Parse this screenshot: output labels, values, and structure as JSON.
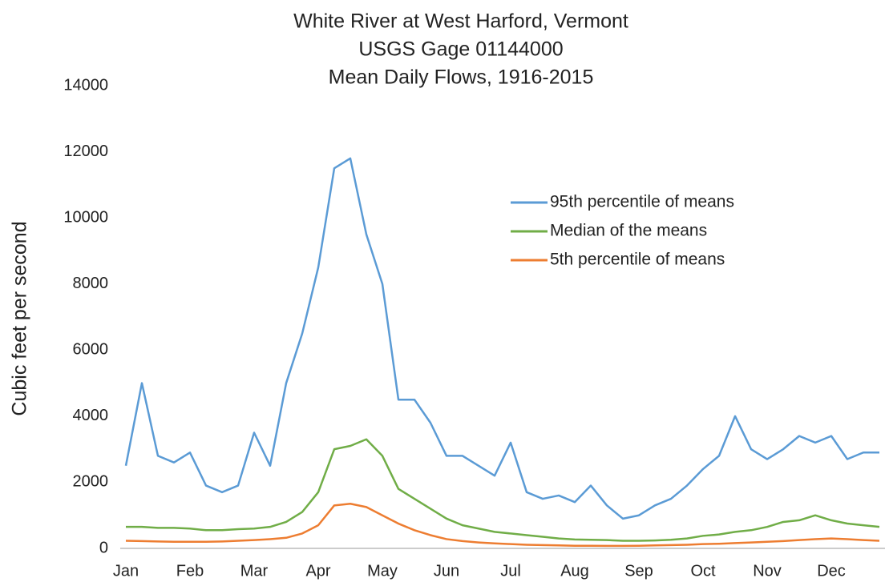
{
  "chart_data": {
    "type": "line",
    "title": [
      "White River at West Harford, Vermont",
      "USGS Gage 01144000",
      "Mean Daily Flows, 1916-2015"
    ],
    "y_label": "Cubic feet per second",
    "categories": [
      "Jan",
      null,
      null,
      null,
      "Feb",
      null,
      null,
      null,
      "Mar",
      null,
      null,
      null,
      "Apr",
      null,
      null,
      null,
      "May",
      null,
      null,
      null,
      "Jun",
      null,
      null,
      null,
      "Jul",
      null,
      null,
      null,
      "Aug",
      null,
      null,
      null,
      "Sep",
      null,
      null,
      null,
      "Oct",
      null,
      null,
      null,
      "Nov",
      null,
      null,
      null,
      "Dec",
      null,
      null,
      null
    ],
    "ylim": [
      0,
      14000
    ],
    "yticks": [
      0,
      2000,
      4000,
      6000,
      8000,
      10000,
      12000,
      14000
    ],
    "grid": false,
    "legend": "upper-right",
    "series": [
      {
        "name": "95th percentile of means",
        "color": "#5b9bd5",
        "values": [
          2500,
          5000,
          2800,
          2600,
          2900,
          1900,
          1700,
          1900,
          3500,
          2500,
          5000,
          6500,
          8500,
          11500,
          11800,
          9500,
          8000,
          4500,
          4500,
          3800,
          2800,
          2800,
          2500,
          2200,
          3200,
          1700,
          1500,
          1600,
          1400,
          1900,
          1300,
          900,
          1000,
          1300,
          1500,
          1900,
          2400,
          2800,
          4000,
          3000,
          2700,
          3000,
          3400,
          3200,
          3400,
          2700,
          2900,
          2900
        ]
      },
      {
        "name": "Median of the means",
        "color": "#70ad47",
        "values": [
          650,
          650,
          620,
          620,
          600,
          550,
          550,
          580,
          600,
          650,
          800,
          1100,
          1700,
          3000,
          3100,
          3300,
          2800,
          1800,
          1500,
          1200,
          900,
          700,
          600,
          500,
          450,
          400,
          350,
          300,
          270,
          260,
          250,
          230,
          230,
          240,
          260,
          300,
          380,
          420,
          500,
          550,
          650,
          800,
          850,
          1000,
          850,
          750,
          700,
          650
        ]
      },
      {
        "name": "5th percentile of means",
        "color": "#ed7d31",
        "values": [
          230,
          220,
          210,
          200,
          200,
          200,
          210,
          230,
          250,
          280,
          320,
          450,
          700,
          1300,
          1350,
          1250,
          1000,
          750,
          550,
          400,
          280,
          220,
          180,
          150,
          130,
          110,
          100,
          90,
          80,
          80,
          75,
          75,
          80,
          90,
          100,
          110,
          130,
          140,
          160,
          180,
          200,
          220,
          250,
          280,
          300,
          280,
          250,
          230
        ]
      }
    ]
  }
}
